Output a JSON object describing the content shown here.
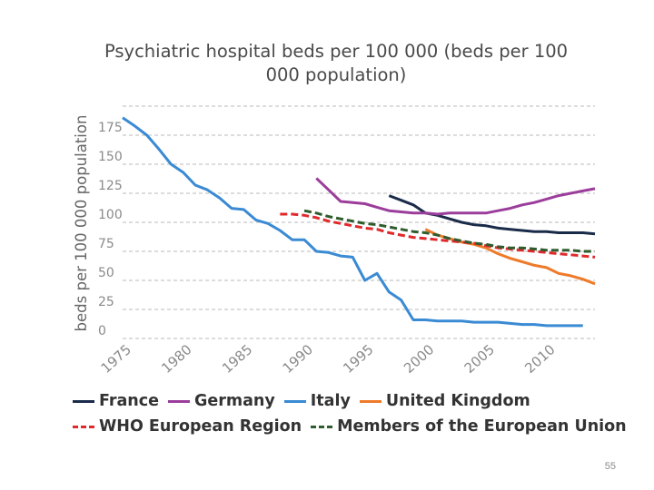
{
  "slide_number": "55",
  "chart_data": {
    "type": "line",
    "title": "Psychiatric hospital beds per 100 000 (beds per 100 000 population)",
    "title_lines": [
      "Psychiatric hospital beds per 100 000 (beds per 100",
      "000 population)"
    ],
    "xlabel": "",
    "ylabel": "beds per 100 000 population",
    "xlim": [
      1975,
      2014
    ],
    "ylim": [
      0,
      200
    ],
    "x_ticks": [
      1975,
      1980,
      1985,
      1990,
      1995,
      2000,
      2005,
      2010
    ],
    "x_tick_labels": [
      "1975",
      "1980",
      "1985",
      "1990",
      "1995",
      "2000",
      "2005",
      "2010"
    ],
    "y_ticks": [
      0,
      25,
      50,
      75,
      100,
      125,
      150,
      175
    ],
    "y_tick_labels": [
      "0",
      "25",
      "50",
      "75",
      "100",
      "125",
      "150",
      "175"
    ],
    "grid": true,
    "legend_position": "bottom",
    "series": [
      {
        "name": "France",
        "color": "#1a2b4a",
        "dashed": false,
        "x": [
          1997,
          1998,
          1999,
          2000,
          2001,
          2002,
          2003,
          2004,
          2005,
          2006,
          2007,
          2008,
          2009,
          2010,
          2011,
          2012,
          2013,
          2014
        ],
        "y": [
          123,
          119,
          115,
          108,
          106,
          103,
          100,
          98,
          97,
          95,
          94,
          93,
          92,
          92,
          91,
          91,
          91,
          90
        ]
      },
      {
        "name": "Germany",
        "color": "#9b3d9b",
        "dashed": false,
        "x": [
          1991,
          1992,
          1993,
          1994,
          1995,
          1996,
          1997,
          1998,
          1999,
          2000,
          2001,
          2002,
          2003,
          2004,
          2005,
          2006,
          2007,
          2008,
          2009,
          2010,
          2011,
          2012,
          2013,
          2014
        ],
        "y": [
          138,
          128,
          118,
          117,
          116,
          113,
          110,
          109,
          108,
          108,
          107,
          108,
          108,
          108,
          108,
          110,
          112,
          115,
          117,
          120,
          123,
          125,
          127,
          129
        ]
      },
      {
        "name": "Italy",
        "color": "#3a8ad4",
        "dashed": false,
        "x": [
          1975,
          1976,
          1977,
          1978,
          1979,
          1980,
          1981,
          1982,
          1983,
          1984,
          1985,
          1986,
          1987,
          1988,
          1989,
          1990,
          1991,
          1992,
          1993,
          1994,
          1995,
          1996,
          1997,
          1998,
          1999,
          2000,
          2001,
          2002,
          2003,
          2004,
          2005,
          2006,
          2007,
          2008,
          2009,
          2010,
          2011,
          2012,
          2013
        ],
        "y": [
          190,
          183,
          175,
          163,
          150,
          143,
          132,
          128,
          121,
          112,
          111,
          102,
          99,
          93,
          85,
          85,
          75,
          74,
          71,
          70,
          50,
          56,
          40,
          33,
          16,
          16,
          15,
          15,
          15,
          14,
          14,
          14,
          13,
          12,
          12,
          11,
          11,
          11,
          11
        ]
      },
      {
        "name": "United Kingdom",
        "color": "#ee7a2a",
        "dashed": false,
        "x": [
          2000,
          2001,
          2002,
          2003,
          2004,
          2005,
          2006,
          2007,
          2008,
          2009,
          2010,
          2011,
          2012,
          2013,
          2014
        ],
        "y": [
          94,
          89,
          86,
          83,
          81,
          78,
          73,
          69,
          66,
          63,
          61,
          56,
          54,
          51,
          47
        ]
      },
      {
        "name": "WHO European Region",
        "color": "#e0292b",
        "dashed": true,
        "x": [
          1988,
          1989,
          1990,
          1991,
          1992,
          1993,
          1994,
          1995,
          1996,
          1997,
          1998,
          1999,
          2000,
          2001,
          2002,
          2003,
          2004,
          2005,
          2006,
          2007,
          2008,
          2009,
          2010,
          2011,
          2012,
          2013,
          2014
        ],
        "y": [
          107,
          107,
          106,
          104,
          101,
          99,
          97,
          95,
          94,
          91,
          89,
          87,
          86,
          85,
          84,
          83,
          82,
          80,
          78,
          77,
          76,
          75,
          74,
          73,
          72,
          71,
          70
        ]
      },
      {
        "name": "Members of the European Union",
        "color": "#2e5c2e",
        "dashed": true,
        "x": [
          1990,
          1991,
          1992,
          1993,
          1994,
          1995,
          1996,
          1997,
          1998,
          1999,
          2000,
          2001,
          2002,
          2003,
          2004,
          2005,
          2006,
          2007,
          2008,
          2009,
          2010,
          2011,
          2012,
          2013,
          2014
        ],
        "y": [
          110,
          108,
          105,
          103,
          101,
          99,
          98,
          96,
          94,
          92,
          91,
          89,
          86,
          84,
          82,
          81,
          79,
          78,
          78,
          77,
          76,
          76,
          76,
          75,
          75
        ]
      }
    ]
  }
}
